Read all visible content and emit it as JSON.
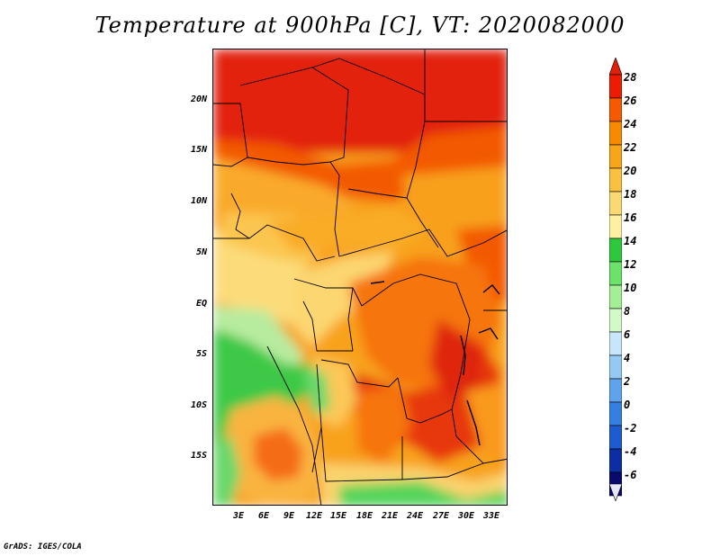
{
  "title": "Temperature at 900hPa [C], VT: 2020082000",
  "footer": "GrADS: IGES/COLA",
  "map": {
    "lat_ticks": [
      "20N",
      "15N",
      "10N",
      "5N",
      "EQ",
      "5S",
      "10S",
      "15S"
    ],
    "lon_ticks": [
      "3E",
      "6E",
      "9E",
      "12E",
      "15E",
      "18E",
      "21E",
      "24E",
      "27E",
      "30E",
      "33E"
    ],
    "lat_range": [
      -19.5,
      24.5
    ],
    "lon_range": [
      0.5,
      34.5
    ]
  },
  "colorbar": {
    "labels": [
      "28",
      "26",
      "24",
      "22",
      "20",
      "18",
      "16",
      "14",
      "12",
      "10",
      "8",
      "6",
      "4",
      "2",
      "0",
      "-2",
      "-4",
      "-6"
    ],
    "colors": [
      "#ed1c00",
      "#f55a00",
      "#f88a00",
      "#f9a51a",
      "#fac040",
      "#fbd972",
      "#fef0a0",
      "#2ec83c",
      "#6be36a",
      "#a2f093",
      "#d2f9c6",
      "#c7e6fb",
      "#94c9f4",
      "#5ea4ec",
      "#367fe2",
      "#1d5bd0",
      "#0b2fa2",
      "#0a0a6e"
    ],
    "over_color": "#e0200a",
    "under_color": "#e6e6f9"
  }
}
